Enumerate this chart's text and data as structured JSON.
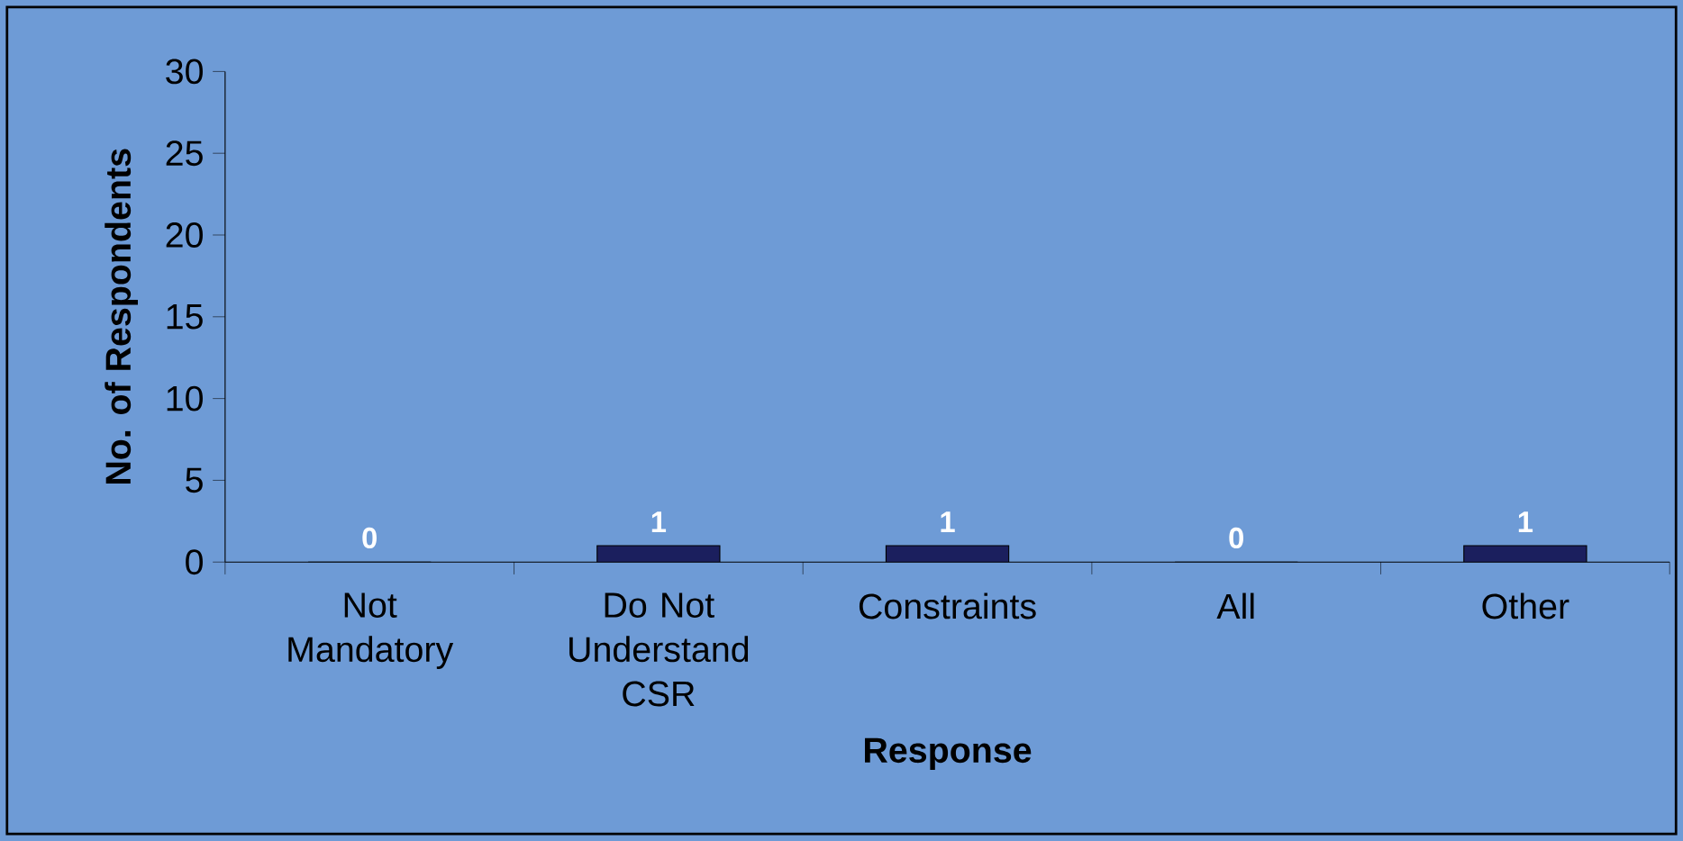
{
  "chart_data": {
    "type": "bar",
    "xlabel": "Response",
    "ylabel": "No. of Respondents",
    "categories": [
      "Not Mandatory",
      "Do Not Understand CSR",
      "Constraints",
      "All",
      "Other"
    ],
    "values": [
      0,
      1,
      1,
      0,
      1
    ],
    "color": "#1b1f5e",
    "ylim": [
      0,
      30
    ],
    "yticks": [
      0,
      5,
      10,
      15,
      20,
      25,
      30
    ],
    "data_labels": true,
    "grid": false
  }
}
